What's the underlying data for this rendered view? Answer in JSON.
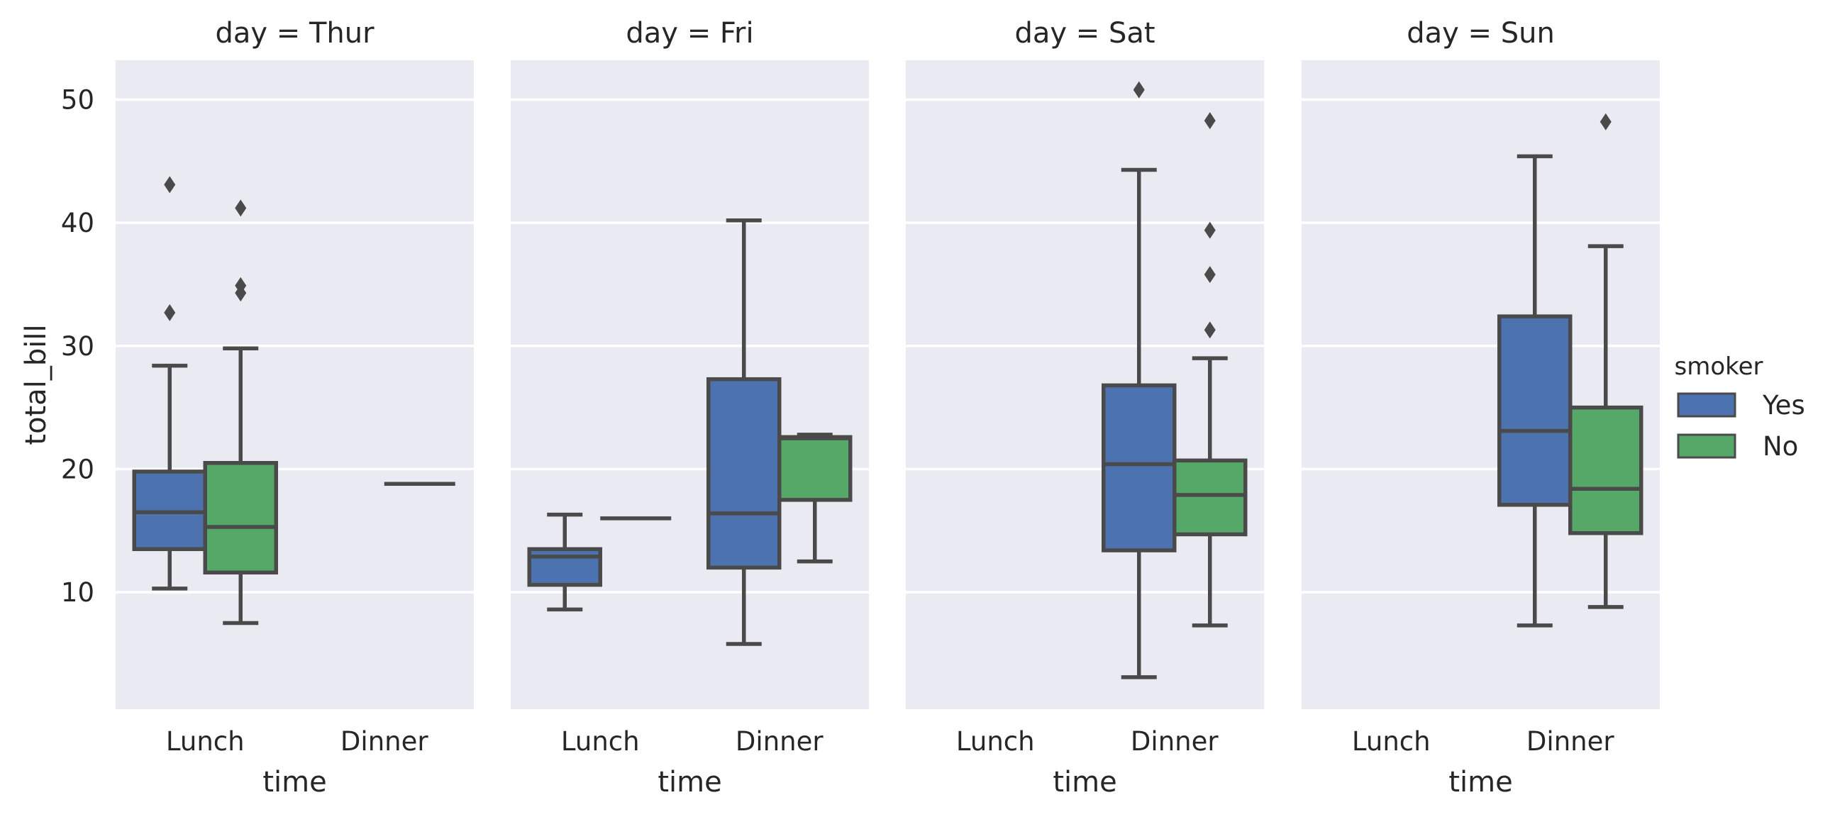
{
  "chart_data": {
    "type": "box",
    "facet_variable": "day",
    "xlabel": "time",
    "ylabel": "total_bill",
    "ylim": [
      0.5,
      53.2
    ],
    "yticks": [
      10,
      20,
      30,
      40,
      50
    ],
    "categories": [
      "Lunch",
      "Dinner"
    ],
    "hue": {
      "title": "smoker",
      "levels": [
        {
          "name": "Yes",
          "color": "#4c72b0"
        },
        {
          "name": "No",
          "color": "#55a868"
        }
      ]
    },
    "grid": true,
    "legend_position": "right",
    "panels": [
      {
        "title": "day = Thur",
        "boxes": [
          {
            "time": "Lunch",
            "smoker": "Yes",
            "whislo": 10.3,
            "q1": 13.5,
            "med": 16.5,
            "q3": 19.8,
            "whishi": 28.4,
            "fliers": [
              32.7,
              43.1
            ]
          },
          {
            "time": "Lunch",
            "smoker": "No",
            "whislo": 7.5,
            "q1": 11.6,
            "med": 15.3,
            "q3": 20.5,
            "whishi": 29.8,
            "fliers": [
              34.3,
              34.9,
              41.2
            ]
          },
          {
            "time": "Dinner",
            "smoker": "No",
            "whislo": 18.8,
            "q1": 18.8,
            "med": 18.8,
            "q3": 18.8,
            "whishi": 18.8,
            "fliers": []
          }
        ]
      },
      {
        "title": "day = Fri",
        "boxes": [
          {
            "time": "Lunch",
            "smoker": "Yes",
            "whislo": 8.6,
            "q1": 10.6,
            "med": 12.9,
            "q3": 13.5,
            "whishi": 16.3,
            "fliers": []
          },
          {
            "time": "Lunch",
            "smoker": "No",
            "whislo": 16.0,
            "q1": 16.0,
            "med": 16.0,
            "q3": 16.0,
            "whishi": 16.0,
            "fliers": []
          },
          {
            "time": "Dinner",
            "smoker": "Yes",
            "whislo": 5.8,
            "q1": 12.0,
            "med": 16.4,
            "q3": 27.3,
            "whishi": 40.2,
            "fliers": []
          },
          {
            "time": "Dinner",
            "smoker": "No",
            "whislo": 12.5,
            "q1": 17.5,
            "med": 22.5,
            "q3": 22.6,
            "whishi": 22.8,
            "fliers": []
          }
        ]
      },
      {
        "title": "day = Sat",
        "boxes": [
          {
            "time": "Dinner",
            "smoker": "Yes",
            "whislo": 3.1,
            "q1": 13.4,
            "med": 20.4,
            "q3": 26.8,
            "whishi": 44.3,
            "fliers": [
              50.8
            ]
          },
          {
            "time": "Dinner",
            "smoker": "No",
            "whislo": 7.3,
            "q1": 14.7,
            "med": 17.9,
            "q3": 20.7,
            "whishi": 29.0,
            "fliers": [
              31.3,
              35.8,
              39.4,
              48.3
            ]
          }
        ]
      },
      {
        "title": "day = Sun",
        "boxes": [
          {
            "time": "Dinner",
            "smoker": "Yes",
            "whislo": 7.3,
            "q1": 17.1,
            "med": 23.1,
            "q3": 32.4,
            "whishi": 45.4,
            "fliers": []
          },
          {
            "time": "Dinner",
            "smoker": "No",
            "whislo": 8.8,
            "q1": 14.8,
            "med": 18.4,
            "q3": 25.0,
            "whishi": 38.1,
            "fliers": [
              48.2
            ]
          }
        ]
      }
    ]
  }
}
